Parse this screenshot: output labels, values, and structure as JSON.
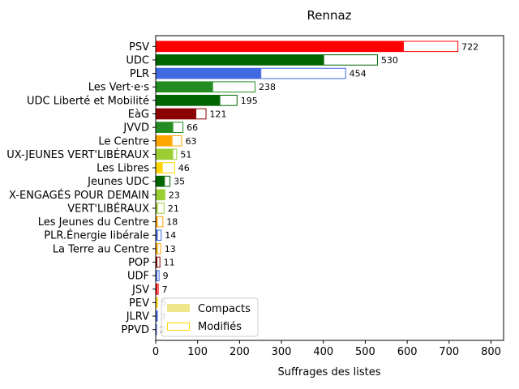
{
  "chart_data": {
    "type": "bar",
    "orientation": "horizontal",
    "stacked": true,
    "title": "Rennaz",
    "xlabel": "Suffrages des listes",
    "ylabel": "",
    "xlim": [
      0,
      830
    ],
    "xticks": [
      0,
      100,
      200,
      300,
      400,
      500,
      600,
      700,
      800
    ],
    "grid": false,
    "legend_position": "lower-left",
    "legend": [
      {
        "name": "Compacts",
        "style": "filled",
        "color": "#f0e68c"
      },
      {
        "name": "Modifiés",
        "style": "outline",
        "color": "#ffd700"
      }
    ],
    "categories": [
      "PSV",
      "UDC",
      "PLR",
      "Les Vert·e·s",
      "UDC Liberté et Mobilité",
      "EàG",
      "JVVD",
      "Le Centre",
      "UX-JEUNES VERT'LIBÉRAUX",
      "Les Libres",
      "Jeunes UDC",
      "X-ENGAGÉS POUR DEMAIN",
      "VERT'LIBÉRAUX",
      "Les Jeunes du Centre",
      "PLR.Énergie libérale",
      "La Terre au Centre",
      "POP",
      "UDF",
      "JSV",
      "PEV",
      "JLRV",
      "PPVD"
    ],
    "colors": [
      "#ff0000",
      "#006400",
      "#4169e1",
      "#228b22",
      "#006400",
      "#8b0000",
      "#228b22",
      "#ffa500",
      "#9acd32",
      "#ffd700",
      "#006400",
      "#9acd32",
      "#9acd32",
      "#ffa500",
      "#4169e1",
      "#ffa500",
      "#8b0000",
      "#4169e1",
      "#ff0000",
      "#ffd700",
      "#4169e1",
      "#4169e1"
    ],
    "series": [
      {
        "name": "Compacts",
        "values": [
          590,
          400,
          250,
          135,
          152,
          95,
          40,
          38,
          40,
          15,
          20,
          20,
          3,
          3,
          3,
          3,
          2,
          2,
          2,
          1,
          2,
          0
        ]
      },
      {
        "name": "Modifiés",
        "values": [
          132,
          130,
          204,
          103,
          43,
          26,
          26,
          25,
          11,
          31,
          15,
          3,
          18,
          15,
          11,
          10,
          9,
          7,
          5,
          4,
          1,
          2
        ]
      }
    ],
    "totals": [
      722,
      530,
      454,
      238,
      195,
      121,
      66,
      63,
      51,
      46,
      35,
      23,
      21,
      18,
      14,
      13,
      11,
      9,
      7,
      5,
      3,
      2
    ]
  }
}
